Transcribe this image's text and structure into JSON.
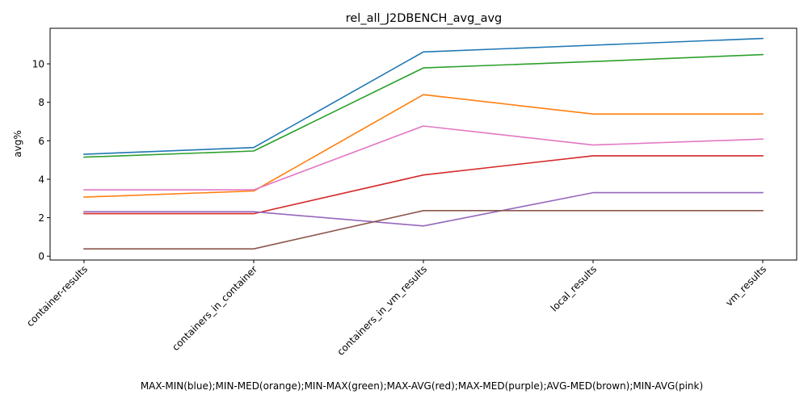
{
  "chart_data": {
    "type": "line",
    "title": "rel_all_J2DBENCH_avg_avg",
    "xlabel": "MAX-MIN(blue);MIN-MED(orange);MIN-MAX(green);MAX-AVG(red);MAX-MED(purple);AVG-MED(brown);MIN-AVG(pink)",
    "ylabel": "avg%",
    "categories": [
      "container-results",
      "containers_in_container",
      "containers_in_vm_results",
      "local_results",
      "vm_results"
    ],
    "yticks": [
      "0",
      "2",
      "4",
      "6",
      "8",
      "10"
    ],
    "ylim": [
      -0.2,
      11.85
    ],
    "grid": false,
    "legend": "none",
    "series": [
      {
        "color": "#1f77b4",
        "values": [
          5.3,
          5.65,
          10.62,
          10.97,
          11.32
        ]
      },
      {
        "color": "#ff7f0e",
        "values": [
          3.07,
          3.39,
          8.4,
          7.39,
          7.39
        ]
      },
      {
        "color": "#2ca02c",
        "values": [
          5.15,
          5.47,
          9.79,
          10.12,
          10.48
        ]
      },
      {
        "color": "#d62728",
        "values": [
          2.21,
          2.21,
          4.22,
          5.22,
          5.22
        ]
      },
      {
        "color": "#9467bd",
        "values": [
          2.31,
          2.31,
          1.57,
          3.3,
          3.3
        ]
      },
      {
        "color": "#8c564b",
        "values": [
          0.38,
          0.38,
          2.37,
          2.37,
          2.37
        ]
      },
      {
        "color": "#e377c2",
        "values": [
          3.45,
          3.45,
          6.77,
          5.78,
          6.09
        ]
      }
    ]
  }
}
